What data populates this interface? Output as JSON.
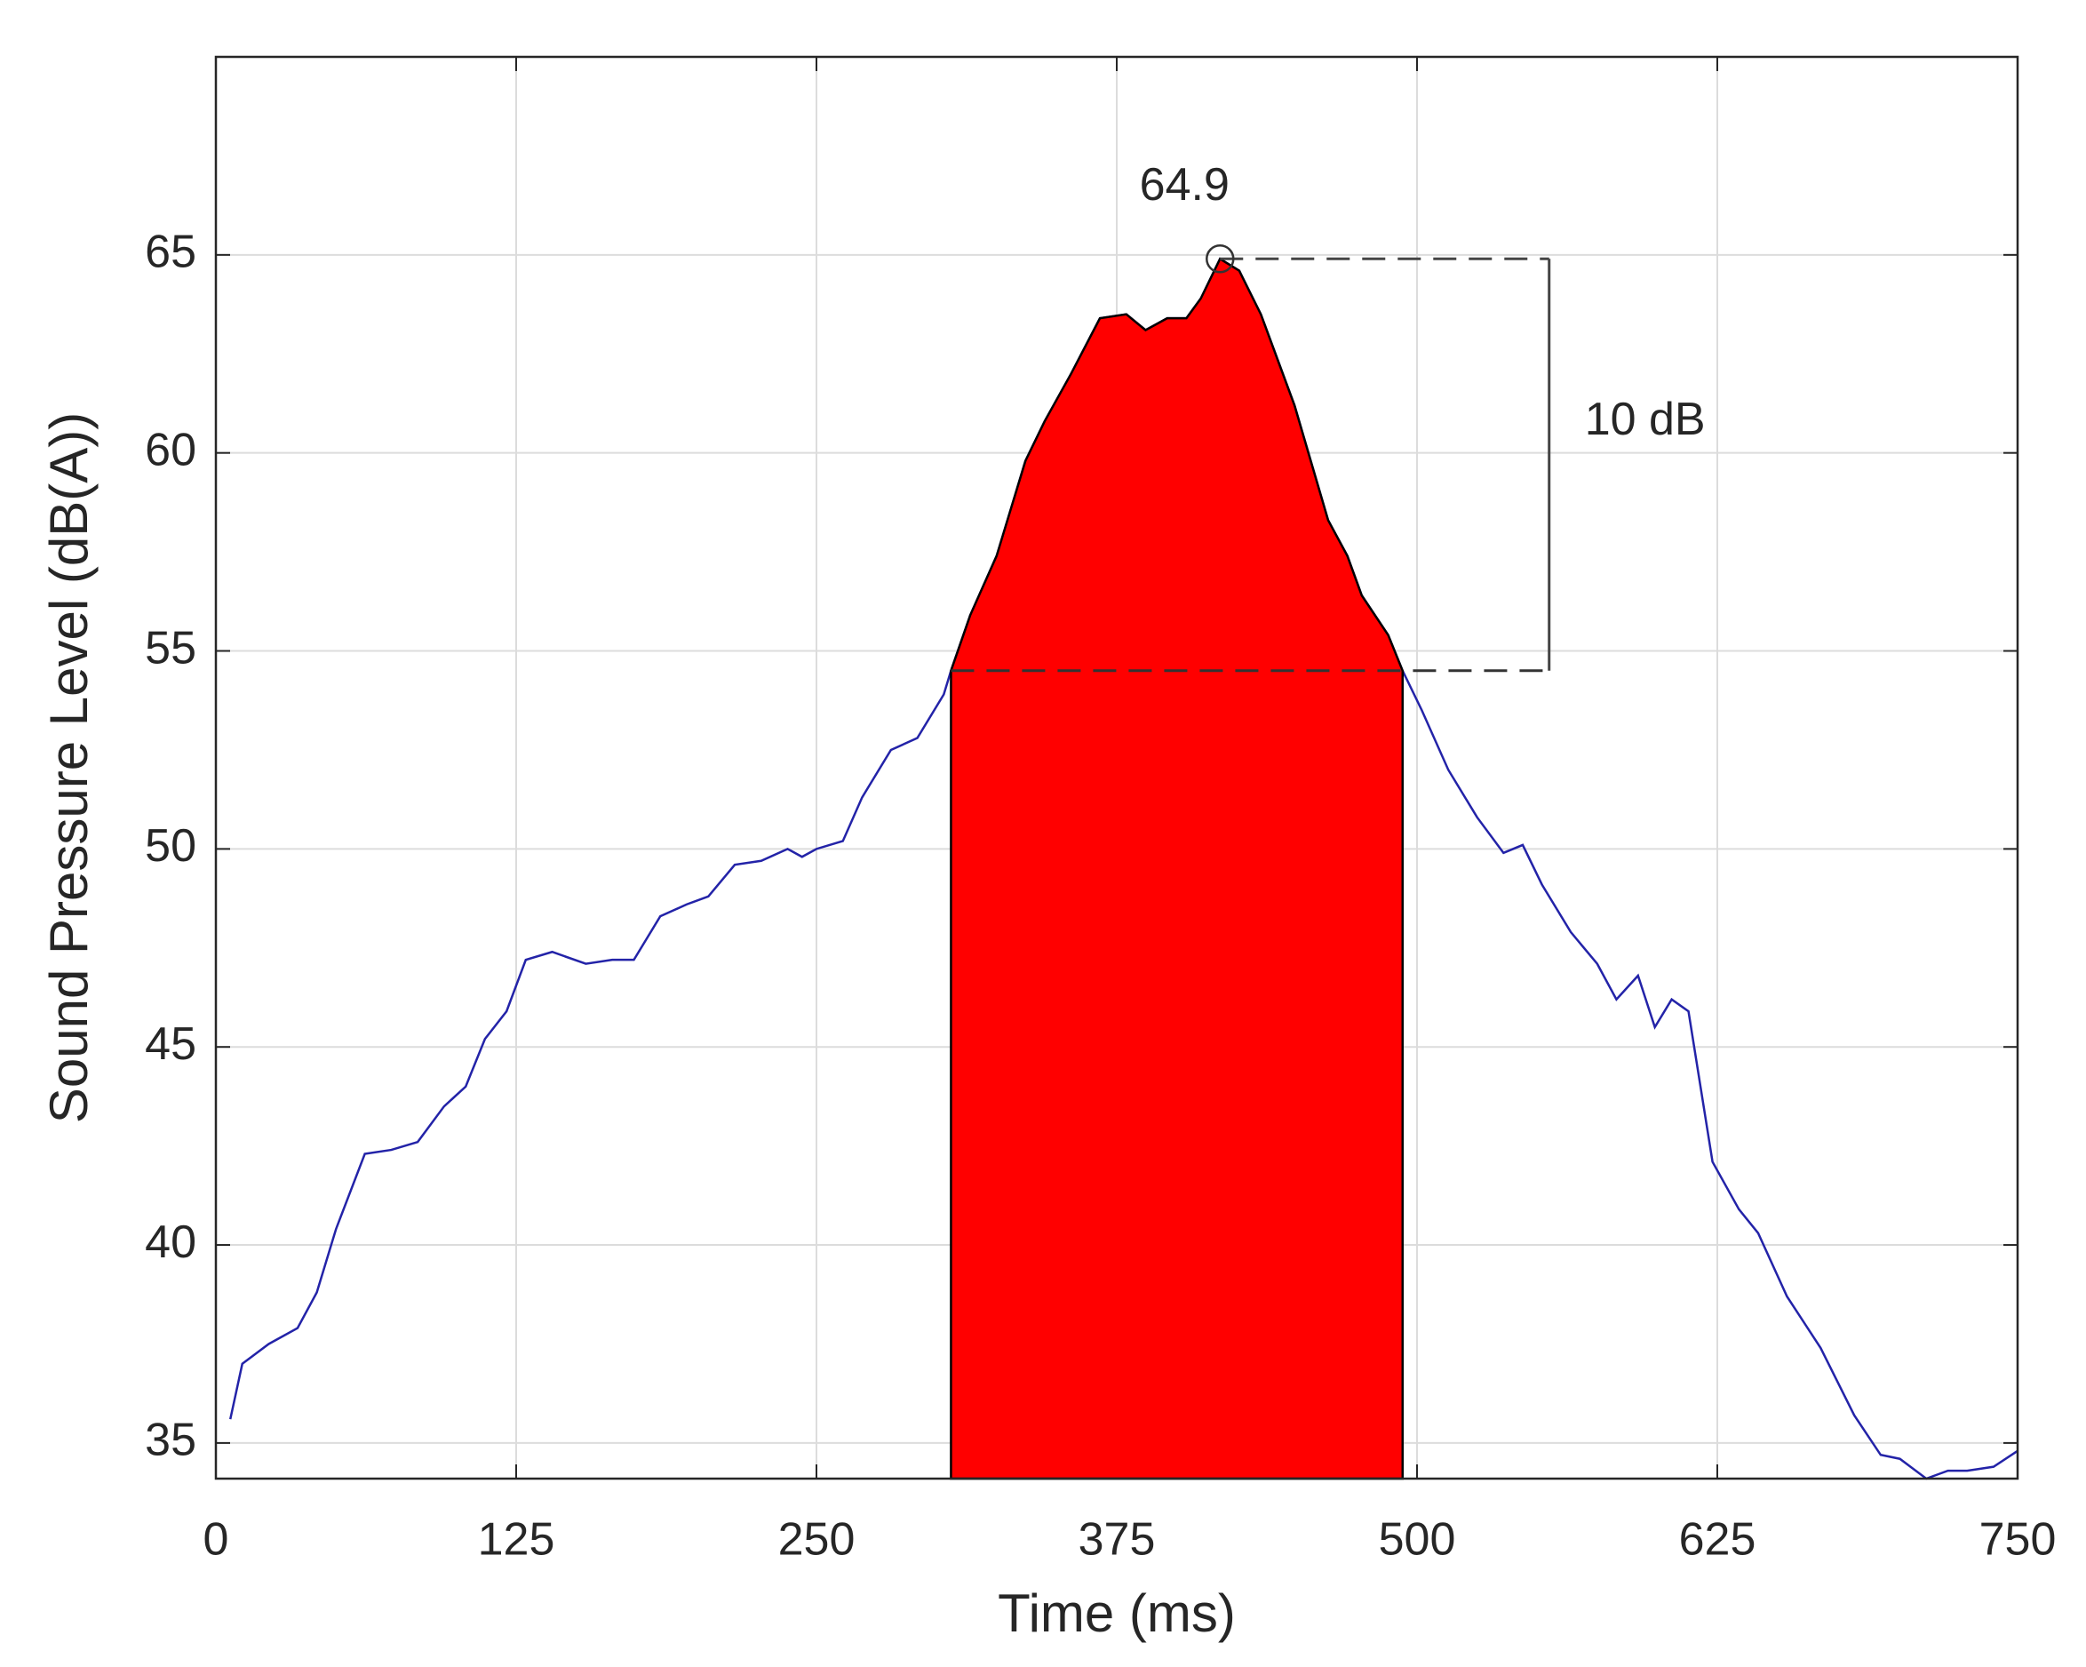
{
  "chart_data": {
    "type": "line",
    "xlabel": "Time (ms)",
    "ylabel": "Sound Pressure Level (dB(A))",
    "xlim": [
      0,
      750
    ],
    "xticks": [
      0,
      125,
      250,
      375,
      500,
      625,
      750
    ],
    "ylim": [
      34.1,
      70
    ],
    "yticks": [
      35,
      40,
      45,
      50,
      55,
      60,
      65
    ],
    "grid": true,
    "series": [
      {
        "color": "#2323a8",
        "x": [
          6,
          11,
          22,
          34,
          42,
          50,
          62,
          73,
          84,
          95,
          104,
          112,
          121,
          129,
          140,
          154,
          165,
          174,
          185,
          196,
          205,
          216,
          227,
          238,
          244,
          250,
          261,
          269,
          281,
          292,
          303,
          306,
          314,
          325,
          337,
          345,
          356,
          368,
          379,
          387,
          396,
          404,
          410,
          418,
          426,
          435,
          449,
          463,
          471,
          477,
          488,
          494,
          502,
          513,
          525,
          536,
          544,
          552,
          564,
          575,
          583,
          592,
          599,
          606,
          613,
          623,
          634,
          642,
          654,
          668,
          682,
          693,
          701,
          712,
          721,
          729,
          740,
          750
        ],
        "values": [
          35.6,
          37.0,
          37.5,
          37.9,
          38.8,
          40.4,
          42.3,
          42.4,
          42.6,
          43.5,
          44.0,
          45.2,
          45.9,
          47.2,
          47.4,
          47.1,
          47.2,
          47.2,
          48.3,
          48.6,
          48.8,
          49.6,
          49.7,
          50.0,
          49.8,
          50.0,
          50.2,
          51.3,
          52.5,
          52.8,
          53.9,
          54.5,
          55.9,
          57.4,
          59.8,
          60.8,
          62.0,
          63.4,
          63.5,
          63.1,
          63.4,
          63.4,
          63.9,
          64.9,
          64.6,
          63.5,
          61.2,
          58.3,
          57.4,
          56.4,
          55.4,
          54.5,
          53.5,
          52.0,
          50.8,
          49.9,
          50.1,
          49.1,
          47.9,
          47.1,
          46.2,
          46.8,
          45.5,
          46.2,
          45.9,
          42.1,
          40.9,
          40.3,
          38.7,
          37.4,
          35.7,
          34.7,
          34.6,
          34.1,
          34.3,
          34.3,
          34.4,
          34.8
        ]
      }
    ],
    "fill": {
      "x": [
        306,
        494
      ],
      "color": "#ff0000"
    },
    "peak": {
      "x": 418,
      "value": 64.9,
      "label": "64.9"
    },
    "bracket": {
      "x": 555,
      "range": [
        54.5,
        64.9
      ],
      "label": "10 dB"
    }
  }
}
